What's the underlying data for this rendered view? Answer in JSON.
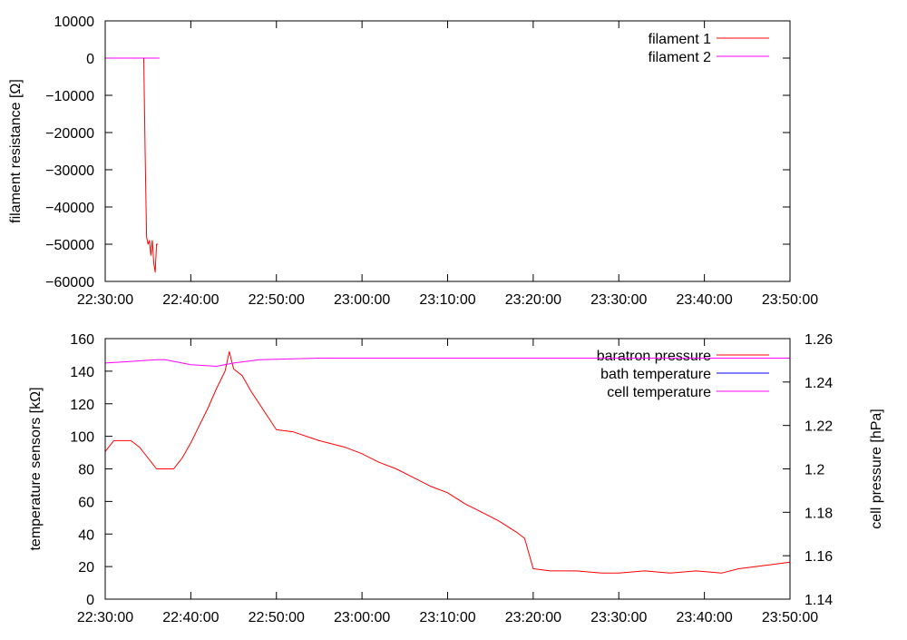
{
  "colors": {
    "red": "#ff0000",
    "blue": "#0000ff",
    "magenta": "#ff00ff",
    "axis": "#000000"
  },
  "chart_data": [
    {
      "type": "line",
      "title": "",
      "xlabel": "",
      "ylabel": "filament resistance [Ω]",
      "xlim": [
        "22:30:00",
        "23:50:00"
      ],
      "ylim": [
        -60000,
        10000
      ],
      "x_ticks": [
        "22:30:00",
        "22:40:00",
        "22:50:00",
        "23:00:00",
        "23:10:00",
        "23:20:00",
        "23:30:00",
        "23:40:00",
        "23:50:00"
      ],
      "y_ticks": [
        "10000",
        "0",
        "-10000",
        "-20000",
        "-30000",
        "-40000",
        "-50000",
        "-60000"
      ],
      "legend_position": "top-right",
      "series": [
        {
          "name": "filament 1",
          "color": "#ff0000",
          "x": [
            "22:30:00",
            "22:34:30",
            "22:34:40",
            "22:34:50",
            "22:35:00",
            "22:35:10",
            "22:35:20",
            "22:35:30",
            "22:35:40",
            "22:35:50",
            "22:36:00",
            "22:36:10"
          ],
          "y": [
            0,
            0,
            -25000,
            -48000,
            -50000,
            -49000,
            -53000,
            -49000,
            -55000,
            -57500,
            -50000,
            -50000
          ]
        },
        {
          "name": "filament 2",
          "color": "#ff00ff",
          "x": [
            "22:30:00",
            "22:32:00",
            "22:34:00",
            "22:36:20"
          ],
          "y": [
            0,
            0,
            0,
            0
          ]
        }
      ]
    },
    {
      "type": "line",
      "title": "",
      "xlabel": "",
      "ylabel": "temperature sensors [kΩ]",
      "y2label": "cell pressure [hPa]",
      "xlim": [
        "22:30:00",
        "23:50:00"
      ],
      "ylim": [
        0,
        160
      ],
      "y2lim": [
        1.14,
        1.26
      ],
      "x_ticks": [
        "22:30:00",
        "22:40:00",
        "22:50:00",
        "23:00:00",
        "23:10:00",
        "23:20:00",
        "23:30:00",
        "23:40:00",
        "23:50:00"
      ],
      "y_ticks": [
        "160",
        "140",
        "120",
        "100",
        "80",
        "60",
        "40",
        "20",
        "0"
      ],
      "y2_ticks": [
        "1.26",
        "1.24",
        "1.22",
        "1.2",
        "1.18",
        "1.16",
        "1.14"
      ],
      "legend_position": "top-right",
      "series": [
        {
          "name": "baratron pressure",
          "color": "#ff0000",
          "axis": "y2",
          "x": [
            "22:30:00",
            "22:31:00",
            "22:33:00",
            "22:34:00",
            "22:35:00",
            "22:36:00",
            "22:37:00",
            "22:38:00",
            "22:39:00",
            "22:40:00",
            "22:41:00",
            "22:42:00",
            "22:43:00",
            "22:44:00",
            "22:44:30",
            "22:45:00",
            "22:46:00",
            "22:47:00",
            "22:48:00",
            "22:49:00",
            "22:50:00",
            "22:52:00",
            "22:55:00",
            "22:58:00",
            "23:00:00",
            "23:02:00",
            "23:04:00",
            "23:06:00",
            "23:08:00",
            "23:10:00",
            "23:12:00",
            "23:14:00",
            "23:16:00",
            "23:18:00",
            "23:19:00",
            "23:20:00",
            "23:22:00",
            "23:25:00",
            "23:28:00",
            "23:30:00",
            "23:33:00",
            "23:36:00",
            "23:39:00",
            "23:42:00",
            "23:44:00",
            "23:46:00",
            "23:48:00",
            "23:50:00"
          ],
          "y": [
            1.208,
            1.213,
            1.213,
            1.21,
            1.205,
            1.2,
            1.2,
            1.2,
            1.205,
            1.212,
            1.22,
            1.228,
            1.237,
            1.245,
            1.254,
            1.246,
            1.243,
            1.236,
            1.23,
            1.224,
            1.218,
            1.217,
            1.213,
            1.21,
            1.207,
            1.203,
            1.2,
            1.196,
            1.192,
            1.189,
            1.184,
            1.18,
            1.176,
            1.171,
            1.168,
            1.154,
            1.153,
            1.153,
            1.152,
            1.152,
            1.153,
            1.152,
            1.153,
            1.152,
            1.154,
            1.155,
            1.156,
            1.157
          ]
        },
        {
          "name": "bath temperature",
          "color": "#0000ff",
          "axis": "y",
          "x": [],
          "y": []
        },
        {
          "name": "cell temperature",
          "color": "#ff00ff",
          "axis": "y",
          "x": [
            "22:30:00",
            "22:33:00",
            "22:36:00",
            "22:37:00",
            "22:40:00",
            "22:43:00",
            "22:45:00",
            "22:48:00",
            "22:55:00",
            "23:05:00",
            "23:20:00",
            "23:35:00",
            "23:50:00"
          ],
          "y": [
            145,
            146,
            147,
            147,
            144,
            143,
            145,
            147,
            148,
            148,
            148,
            148,
            148
          ]
        }
      ]
    }
  ]
}
